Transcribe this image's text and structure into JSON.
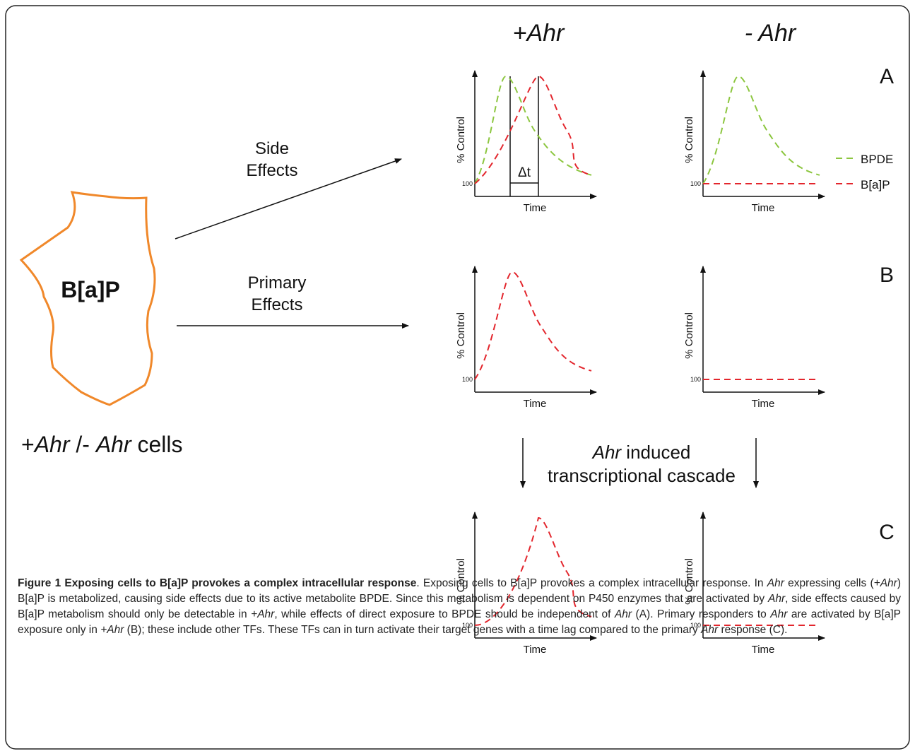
{
  "columns": [
    "+Ahr",
    "- Ahr"
  ],
  "rows": [
    "A",
    "B",
    "C"
  ],
  "cell": {
    "label": "B[a]P",
    "caption": [
      "+",
      "Ahr",
      " /- ",
      "Ahr",
      " cells"
    ]
  },
  "arrows": [
    {
      "label": [
        "Side",
        "Effects"
      ]
    },
    {
      "label": [
        "Primary",
        "Effects"
      ]
    }
  ],
  "cascade": {
    "line1": [
      "Ahr",
      " induced"
    ],
    "line2": "transcriptional cascade"
  },
  "panels": [
    {
      "y_label": "% Control",
      "x_label": "Time",
      "y_tick": "100",
      "delta": "Δt"
    },
    {
      "y_label": "% Control",
      "x_label": "Time",
      "y_tick": "100"
    },
    {
      "y_label": "% Control",
      "x_label": "Time",
      "y_tick": "100"
    },
    {
      "y_label": "% Control",
      "x_label": "Time",
      "y_tick": "100"
    },
    {
      "y_label": "% Control",
      "x_label": "Time",
      "y_tick": "100"
    },
    {
      "y_label": "% Control",
      "x_label": "Time",
      "y_tick": "100"
    }
  ],
  "legend": [
    "BPDE",
    "B[a]P"
  ],
  "caption": {
    "title": "Figure 1 Exposing cells to B[a]P provokes a complex intracellular response",
    "body": [
      ". Exposing cells to B[a]P provokes a complex intracellular response. In ",
      "Ahr",
      " expressing cells (",
      "+Ahr",
      ") B[a]P is metabolized, causing side effects due to its active metabolite BPDE. Since this metabolism is dependent on P450 enzymes that are activated by ",
      "Ahr",
      ", side effects caused by B[a]P metabolism should only be detectable in ",
      "+Ahr",
      ", while effects of direct exposure to BPDE should be independent of ",
      "Ahr",
      " (A). Primary responders to ",
      "Ahr",
      " are activated by B[a]P exposure only in ",
      "+Ahr",
      " (B); these include other TFs. These TFs can in turn activate their target genes with a time lag compared to the primary ",
      "Ahr",
      " response (C)."
    ]
  }
}
